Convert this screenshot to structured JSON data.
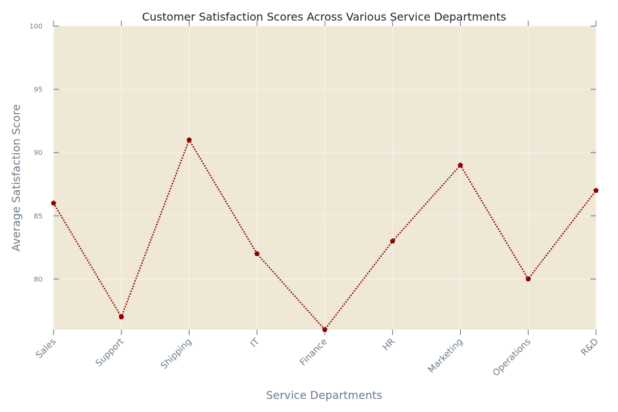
{
  "chart_data": {
    "type": "line",
    "title": "Customer Satisfaction Scores Across Various Service Departments",
    "xlabel": "Service Departments",
    "ylabel": "Average Satisfaction Score",
    "categories": [
      "Sales",
      "Support",
      "Shipping",
      "IT",
      "Finance",
      "HR",
      "Marketing",
      "Operations",
      "R&D"
    ],
    "series": [
      {
        "values": [
          86,
          77,
          91,
          82,
          76,
          83,
          89,
          80,
          87
        ]
      }
    ],
    "ylim": [
      76,
      100
    ],
    "yticks": [
      80,
      85,
      90,
      95,
      100
    ],
    "grid": true,
    "colors": {
      "plot_background": "#efe8d6",
      "grid": "#f8f4ea",
      "line": "#8b0000",
      "marker": "#8b0000",
      "axis_text": "#6b7b8a",
      "tick": "#5a6b7a"
    },
    "line_style": "dotted",
    "marker": "pentagon"
  }
}
